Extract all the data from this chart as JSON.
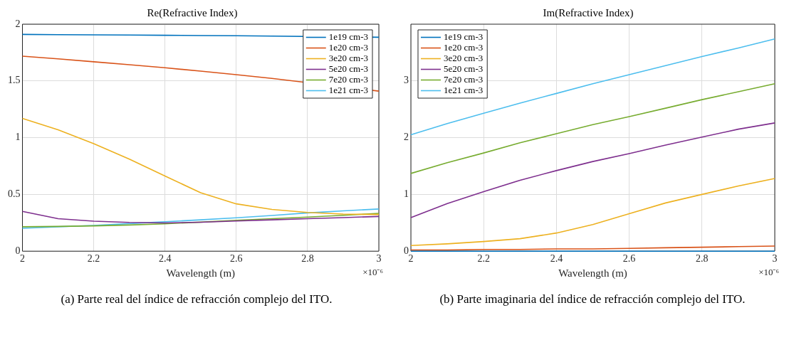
{
  "chart_data": [
    {
      "type": "line",
      "title": "Re(Refractive Index)",
      "xlabel": "Wavelength (m)",
      "x": [
        2,
        2.1,
        2.2,
        2.3,
        2.4,
        2.5,
        2.6,
        2.7,
        2.8,
        2.9,
        3
      ],
      "xlim": [
        2,
        3
      ],
      "xticks": [
        2,
        2.2,
        2.4,
        2.6,
        2.8,
        3
      ],
      "ylim": [
        0,
        2
      ],
      "yticks": [
        0,
        0.5,
        1,
        1.5,
        2
      ],
      "grid": true,
      "legend": "top right",
      "series": [
        {
          "name": "1e19 cm-3",
          "color": "#0072bd",
          "values": [
            1.91,
            1.908,
            1.906,
            1.904,
            1.902,
            1.9,
            1.898,
            1.895,
            null,
            null,
            1.885
          ]
        },
        {
          "name": "1e20 cm-3",
          "color": "#d95319",
          "values": [
            1.718,
            1.695,
            1.669,
            1.643,
            1.616,
            1.586,
            1.555,
            1.522,
            null,
            null,
            1.41
          ]
        },
        {
          "name": "3e20 cm-3",
          "color": "#edb120",
          "values": [
            1.17,
            1.07,
            0.948,
            0.811,
            0.662,
            0.515,
            0.417,
            0.368,
            0.341,
            0.327,
            0.323
          ]
        },
        {
          "name": "5e20 cm-3",
          "color": "#7e2f8e",
          "values": [
            0.351,
            0.286,
            0.264,
            0.253,
            0.249,
            0.255,
            0.266,
            0.276,
            0.286,
            0.296,
            0.306
          ]
        },
        {
          "name": "7e20 cm-3",
          "color": "#77ac30",
          "values": [
            0.215,
            0.218,
            0.223,
            0.231,
            0.241,
            0.256,
            0.272,
            0.286,
            0.3,
            0.316,
            0.333
          ]
        },
        {
          "name": "1e21 cm-3",
          "color": "#4dbeee",
          "values": [
            0.202,
            0.215,
            0.227,
            0.243,
            0.259,
            0.276,
            0.294,
            0.315,
            0.337,
            0.355,
            0.372
          ]
        }
      ],
      "annotations": [
        "×10⁻⁶",
        "(a) Parte real del índice de refracción complejo del ITO."
      ]
    },
    {
      "type": "line",
      "title": "Im(Refractive Index)",
      "xlabel": "Wavelength (m)",
      "x": [
        2,
        2.1,
        2.2,
        2.3,
        2.4,
        2.5,
        2.6,
        2.7,
        2.8,
        2.9,
        3
      ],
      "xlim": [
        2,
        3
      ],
      "xticks": [
        2,
        2.2,
        2.4,
        2.6,
        2.8,
        3
      ],
      "ylim": [
        0,
        4
      ],
      "yticks": [
        0,
        1,
        2,
        3
      ],
      "grid": true,
      "legend": "top left",
      "series": [
        {
          "name": "1e19 cm-3",
          "color": "#0072bd",
          "values": [
            0,
            0,
            0,
            0,
            0,
            0,
            0,
            0,
            0,
            0,
            0
          ]
        },
        {
          "name": "1e20 cm-3",
          "color": "#d95319",
          "values": [
            0.02,
            0.02,
            0.03,
            0.03,
            0.04,
            0.04,
            0.05,
            0.06,
            0.07,
            0.08,
            0.09
          ]
        },
        {
          "name": "3e20 cm-3",
          "color": "#edb120",
          "values": [
            0.1,
            0.13,
            0.17,
            0.22,
            0.32,
            0.47,
            0.66,
            0.85,
            1,
            1.15,
            1.28
          ]
        },
        {
          "name": "5e20 cm-3",
          "color": "#7e2f8e",
          "values": [
            0.59,
            0.84,
            1.05,
            1.25,
            1.42,
            1.58,
            1.72,
            1.87,
            2.01,
            2.15,
            2.26
          ]
        },
        {
          "name": "7e20 cm-3",
          "color": "#77ac30",
          "values": [
            1.37,
            1.56,
            1.73,
            1.91,
            2.07,
            2.23,
            2.37,
            2.52,
            2.67,
            2.81,
            2.95
          ]
        },
        {
          "name": "1e21 cm-3",
          "color": "#4dbeee",
          "values": [
            2.05,
            2.25,
            2.43,
            2.61,
            2.78,
            2.95,
            3.11,
            3.27,
            3.43,
            3.58,
            3.74
          ]
        }
      ],
      "annotations": [
        "×10⁻⁶",
        "(b) Parte imaginaria del índice de refracción complejo del ITO."
      ]
    }
  ]
}
